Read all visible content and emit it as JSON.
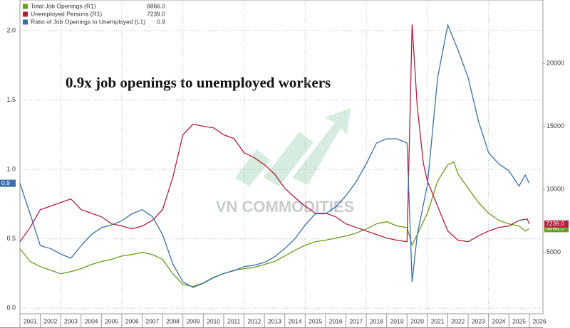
{
  "chart_data": {
    "type": "line",
    "annotation": "0.9x job openings to unemployed workers",
    "watermark": "VN COMMODITIES",
    "xlim": [
      2001,
      2026.67
    ],
    "xticks": [
      2001,
      2002,
      2003,
      2004,
      2005,
      2006,
      2007,
      2008,
      2009,
      2010,
      2011,
      2012,
      2013,
      2014,
      2015,
      2016,
      2017,
      2018,
      2019,
      2020,
      2021,
      2022,
      2023,
      2024,
      2025,
      2026
    ],
    "ylim": [
      -0.04,
      2.22
    ],
    "yticks": [
      {
        "value": 0,
        "label": "0.0"
      },
      {
        "value": 0.5,
        "label": "0.5"
      },
      {
        "value": 1,
        "label": "1.0"
      },
      {
        "value": 1.5,
        "label": "1.5"
      },
      {
        "value": 2,
        "label": "2.0"
      }
    ],
    "y2lim": [
      100,
      25050
    ],
    "y2ticks": [
      5000,
      10000,
      15000,
      20000
    ],
    "grid": true,
    "legend": "top-left",
    "series": [
      {
        "name": "Total Job Openings (R1)",
        "color": "#6b9a1e",
        "axis": "y2",
        "last_label": "6866.0",
        "x": [
          2001,
          2001.5,
          2002,
          2002.5,
          2003,
          2003.5,
          2004,
          2004.5,
          2005,
          2005.5,
          2006,
          2006.5,
          2007,
          2007.5,
          2008,
          2008.5,
          2009,
          2009.5,
          2010,
          2010.5,
          2011,
          2011.5,
          2012,
          2012.5,
          2013,
          2013.5,
          2014,
          2014.5,
          2015,
          2015.5,
          2016,
          2016.5,
          2017,
          2017.5,
          2018,
          2018.5,
          2019,
          2019.5,
          2020,
          2020.25,
          2020.5,
          2021,
          2021.5,
          2022,
          2022.3,
          2022.5,
          2023,
          2023.5,
          2024,
          2024.5,
          2025,
          2025.5,
          2025.8,
          2026
        ],
        "values": [
          5270,
          4250,
          3850,
          3570,
          3280,
          3450,
          3680,
          4020,
          4250,
          4420,
          4700,
          4810,
          4980,
          4810,
          4420,
          3280,
          2430,
          2270,
          2550,
          3000,
          3280,
          3570,
          3680,
          3790,
          4020,
          4250,
          4700,
          5150,
          5550,
          5830,
          5950,
          6120,
          6290,
          6510,
          6850,
          7250,
          7420,
          7080,
          6960,
          5550,
          6400,
          8100,
          10650,
          11950,
          12170,
          11210,
          10080,
          8950,
          8100,
          7530,
          7250,
          7080,
          6680,
          6866
        ]
      },
      {
        "name": "Unemployed Persons (R1)",
        "color": "#b01e3c",
        "axis": "y2",
        "last_label": "7239.0",
        "x": [
          2001,
          2001.5,
          2002,
          2002.5,
          2003,
          2003.5,
          2004,
          2004.5,
          2005,
          2005.5,
          2006,
          2006.5,
          2007,
          2007.5,
          2008,
          2008.5,
          2009,
          2009.5,
          2010,
          2010.5,
          2011,
          2011.5,
          2012,
          2012.5,
          2013,
          2013.5,
          2014,
          2014.5,
          2015,
          2015.5,
          2016,
          2016.5,
          2017,
          2017.5,
          2018,
          2018.5,
          2019,
          2019.5,
          2020,
          2020.25,
          2020.5,
          2020.8,
          2021,
          2021.5,
          2022,
          2022.5,
          2023,
          2023.5,
          2024,
          2024.5,
          2025,
          2025.5,
          2025.9,
          2026
        ],
        "values": [
          5830,
          6960,
          8380,
          8660,
          8950,
          9230,
          8380,
          8100,
          7810,
          7250,
          7080,
          6850,
          7080,
          7530,
          8380,
          10930,
          14330,
          15180,
          15010,
          14890,
          14330,
          14040,
          12910,
          12510,
          11950,
          11210,
          10080,
          9340,
          8660,
          8100,
          8100,
          7810,
          7250,
          6960,
          6680,
          6400,
          6120,
          5950,
          5830,
          23100,
          16590,
          12060,
          10650,
          8660,
          6680,
          5950,
          5830,
          6290,
          6680,
          6960,
          7080,
          7530,
          7640,
          7239
        ]
      },
      {
        "name": "Ratio of Job Openings to Unemployed (L1)",
        "color": "#3a6fa8",
        "last_label": "0.9",
        "x": [
          2001,
          2001.5,
          2002,
          2002.5,
          2003,
          2003.5,
          2004,
          2004.5,
          2005,
          2005.5,
          2006,
          2006.5,
          2007,
          2007.5,
          2008,
          2008.5,
          2009,
          2009.5,
          2010,
          2010.5,
          2011,
          2011.5,
          2012,
          2012.5,
          2013,
          2013.5,
          2014,
          2014.5,
          2015,
          2015.5,
          2016,
          2016.5,
          2017,
          2017.5,
          2018,
          2018.5,
          2019,
          2019.5,
          2020,
          2020.25,
          2020.5,
          2021,
          2021.5,
          2022,
          2022.5,
          2023,
          2023.5,
          2024,
          2024.5,
          2025,
          2025.5,
          2025.8,
          2026
        ],
        "values": [
          0.9,
          0.68,
          0.45,
          0.43,
          0.39,
          0.36,
          0.45,
          0.53,
          0.58,
          0.6,
          0.63,
          0.68,
          0.71,
          0.66,
          0.53,
          0.32,
          0.19,
          0.15,
          0.18,
          0.22,
          0.25,
          0.27,
          0.3,
          0.31,
          0.33,
          0.37,
          0.43,
          0.5,
          0.6,
          0.68,
          0.68,
          0.73,
          0.81,
          0.91,
          1.04,
          1.19,
          1.22,
          1.22,
          1.19,
          0.19,
          0.53,
          0.89,
          1.66,
          2.04,
          1.86,
          1.66,
          1.35,
          1.12,
          1.04,
          0.99,
          0.88,
          0.96,
          0.9
        ]
      }
    ]
  }
}
